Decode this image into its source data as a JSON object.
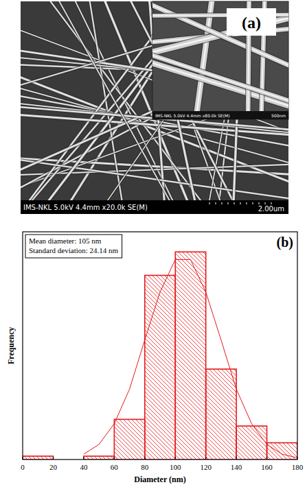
{
  "sem_image": {
    "label": "(a)",
    "info": "IMS-NKL 5.0kV 4.4mm x20.0k SE(M)",
    "scale_bar": "2.00um",
    "inset": {
      "info": "IMS-NKL 5.0kV 4.4mm x80.0k SE(M)",
      "scale_bar": "500nm"
    }
  },
  "chart_data": {
    "type": "histogram",
    "title": "(b)",
    "annotations": [
      "Mean diameter: 105 nm",
      "Standard deviation: 24.14 nm"
    ],
    "x_label": "Diameter (nm)",
    "y_label": "Frequency",
    "bins": [
      0,
      20,
      40,
      60,
      80,
      100,
      120,
      140,
      160,
      180
    ],
    "xlim": [
      0,
      180
    ],
    "xticks": [
      0,
      20,
      40,
      60,
      80,
      100,
      120,
      140,
      160,
      180
    ],
    "ylim": [
      0,
      68
    ],
    "tick_labels": "x",
    "series": [
      {
        "type": "bar",
        "color": "#e31a1c",
        "values": [
          1,
          0,
          1,
          12,
          55,
          62,
          27,
          10,
          5
        ]
      },
      {
        "type": "line",
        "color": "#e31a1c",
        "x": [
          40,
          50,
          60,
          70,
          80,
          90,
          100,
          110,
          120,
          130,
          140,
          150,
          160,
          170,
          180
        ],
        "values": [
          1.6,
          4.5,
          10.7,
          21,
          35.7,
          50,
          59.7,
          59.7,
          50,
          35.7,
          21,
          10.7,
          4.5,
          1.6,
          0.5
        ]
      }
    ]
  }
}
